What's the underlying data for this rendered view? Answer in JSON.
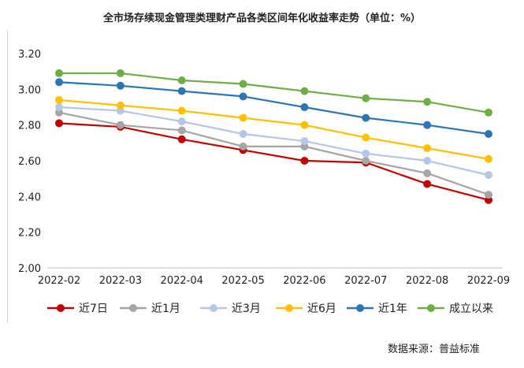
{
  "chart_data": {
    "type": "line",
    "title": "全市场存续现金管理类理财产品各类区间年化收益率走势（单位：%）",
    "categories": [
      "2022-02",
      "2022-03",
      "2022-04",
      "2022-05",
      "2022-06",
      "2022-07",
      "2022-08",
      "2022-09"
    ],
    "ylim": [
      2.0,
      3.2
    ],
    "yticks": [
      "2.00",
      "2.20",
      "2.40",
      "2.60",
      "2.80",
      "3.00",
      "3.20"
    ],
    "xlabel": "",
    "ylabel": "",
    "grid": false,
    "legend_position": "bottom",
    "series": [
      {
        "name": "近7日",
        "color": "#c00000",
        "values": [
          2.81,
          2.79,
          2.72,
          2.66,
          2.6,
          2.59,
          2.47,
          2.38
        ]
      },
      {
        "name": "近1月",
        "color": "#a5a5a5",
        "values": [
          2.87,
          2.8,
          2.77,
          2.68,
          2.68,
          2.6,
          2.53,
          2.41
        ]
      },
      {
        "name": "近3月",
        "color": "#b4c7e7",
        "values": [
          2.9,
          2.88,
          2.82,
          2.75,
          2.71,
          2.64,
          2.6,
          2.52
        ]
      },
      {
        "name": "近6月",
        "color": "#ffc000",
        "values": [
          2.94,
          2.91,
          2.88,
          2.84,
          2.8,
          2.73,
          2.67,
          2.61
        ]
      },
      {
        "name": "近1年",
        "color": "#2e75b6",
        "values": [
          3.04,
          3.02,
          2.99,
          2.96,
          2.9,
          2.84,
          2.8,
          2.75
        ]
      },
      {
        "name": "成立以来",
        "color": "#70ad47",
        "values": [
          3.09,
          3.09,
          3.05,
          3.03,
          2.99,
          2.95,
          2.93,
          2.87
        ]
      }
    ]
  },
  "source_note": "数据来源：普益标准"
}
